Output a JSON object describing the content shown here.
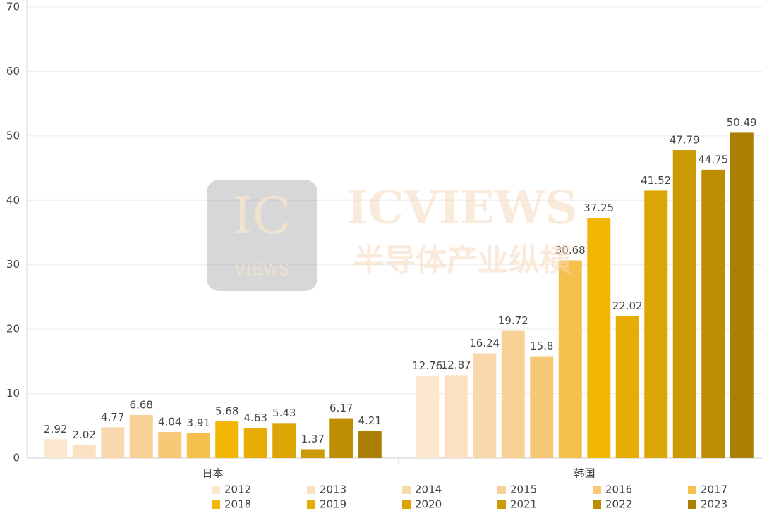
{
  "chart_data": {
    "type": "bar",
    "categories": [
      "日本",
      "韩国"
    ],
    "series": [
      {
        "name": "2012",
        "color": "#fce7cf",
        "values": [
          2.92,
          12.76
        ]
      },
      {
        "name": "2013",
        "color": "#fbe0c1",
        "values": [
          2.02,
          12.87
        ]
      },
      {
        "name": "2014",
        "color": "#f9d8ae",
        "values": [
          4.77,
          16.24
        ]
      },
      {
        "name": "2015",
        "color": "#f8d197",
        "values": [
          6.68,
          19.72
        ]
      },
      {
        "name": "2016",
        "color": "#f7c977",
        "values": [
          4.04,
          15.8
        ]
      },
      {
        "name": "2017",
        "color": "#f5c04b",
        "values": [
          3.91,
          30.68
        ]
      },
      {
        "name": "2018",
        "color": "#f2b705",
        "values": [
          5.68,
          37.25
        ]
      },
      {
        "name": "2019",
        "color": "#e7ad05",
        "values": [
          4.63,
          22.02
        ]
      },
      {
        "name": "2020",
        "color": "#dba503",
        "values": [
          5.43,
          41.52
        ]
      },
      {
        "name": "2021",
        "color": "#cc9a05",
        "values": [
          1.37,
          47.79
        ]
      },
      {
        "name": "2022",
        "color": "#bd8d04",
        "values": [
          6.17,
          44.75
        ]
      },
      {
        "name": "2023",
        "color": "#ab7f04",
        "values": [
          4.21,
          50.49
        ]
      }
    ],
    "ylim": [
      0,
      70
    ],
    "yticks": [
      0,
      10,
      20,
      30,
      40,
      50,
      60,
      70
    ],
    "grid": true,
    "legend": "bottom",
    "watermark": {
      "logo": "IC",
      "logo_sub": "VIEWS",
      "brand": "ICVIEWS",
      "tagline": "半导体产业纵横"
    }
  }
}
